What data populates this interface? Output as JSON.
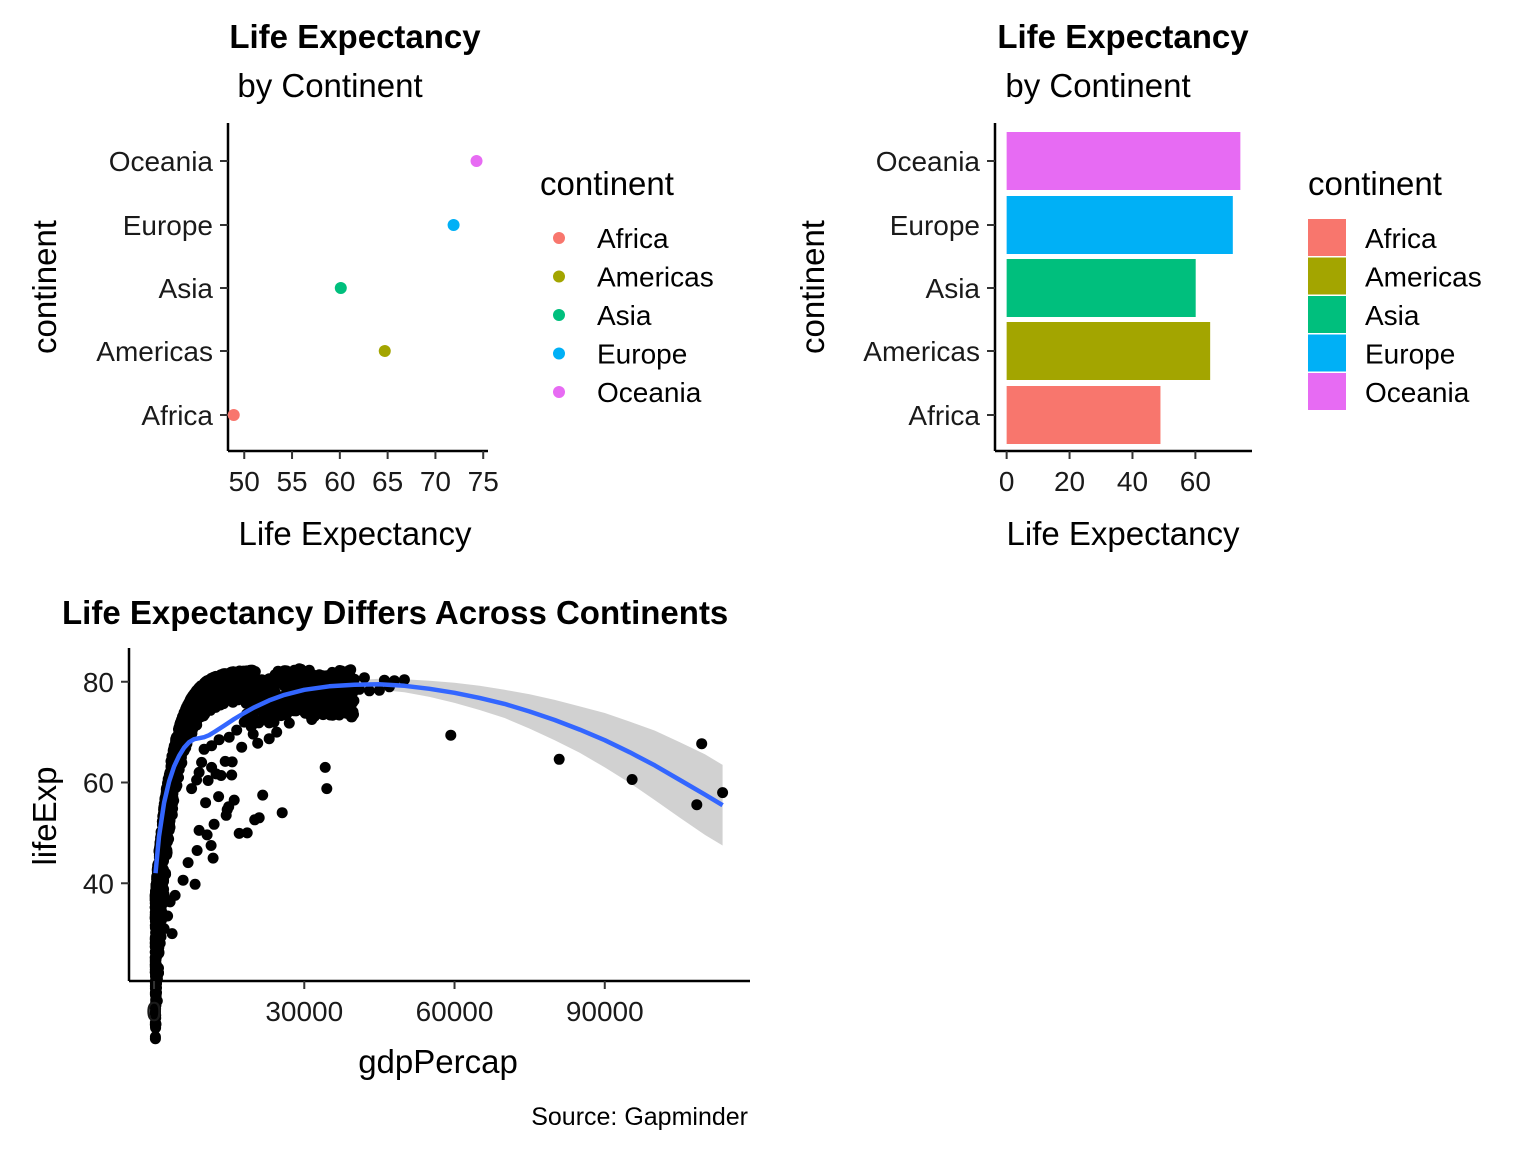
{
  "colors": {
    "Africa": "#F8766D",
    "Americas": "#A3A500",
    "Asia": "#00BF7D",
    "Europe": "#00B0F6",
    "Oceania": "#E76BF3",
    "points": "#000000",
    "smooth_line": "#3366FF",
    "ribbon": "#BEBEBE"
  },
  "chart_data": [
    {
      "type": "scatter",
      "title": "Life Expectancy",
      "subtitle": "by Continent",
      "xlabel": "Life Expectancy",
      "ylabel": "continent",
      "categories": [
        "Africa",
        "Americas",
        "Asia",
        "Europe",
        "Oceania"
      ],
      "values": [
        48.9,
        64.7,
        60.1,
        71.9,
        74.3
      ],
      "xlim": [
        48.3,
        75.5
      ],
      "xticks": [
        "50",
        "55",
        "60",
        "65",
        "70",
        "75"
      ],
      "legend": {
        "title": "continent",
        "items": [
          "Africa",
          "Americas",
          "Asia",
          "Europe",
          "Oceania"
        ],
        "placement": "right"
      },
      "grid": false
    },
    {
      "type": "bar",
      "orientation": "horizontal",
      "title": "Life Expectancy",
      "subtitle": "by Continent",
      "xlabel": "Life Expectancy",
      "ylabel": "continent",
      "categories": [
        "Africa",
        "Americas",
        "Asia",
        "Europe",
        "Oceania"
      ],
      "values": [
        48.9,
        64.7,
        60.1,
        71.9,
        74.3
      ],
      "xlim": [
        -3.7,
        78.0
      ],
      "xticks": [
        "0",
        "20",
        "40",
        "60"
      ],
      "legend": {
        "title": "continent",
        "items": [
          "Africa",
          "Americas",
          "Asia",
          "Europe",
          "Oceania"
        ],
        "placement": "right"
      },
      "grid": false
    },
    {
      "type": "scatter",
      "title": "Life Expectancy Differs Across Continents",
      "xlabel": "gdpPercap",
      "ylabel": "lifeExp",
      "caption": "Source: Gapminder",
      "xlim": [
        -5000,
        119000
      ],
      "ylim": [
        20.6,
        86.7
      ],
      "xticks": [
        "0",
        "30000",
        "60000",
        "90000"
      ],
      "yticks": [
        "40",
        "60",
        "80"
      ],
      "outlier_points": [
        [
          59265,
          69.4
        ],
        [
          80895,
          64.6
        ],
        [
          95458,
          60.6
        ],
        [
          108382,
          55.6
        ],
        [
          109348,
          67.7
        ],
        [
          113523,
          58.0
        ],
        [
          34168,
          63.0
        ],
        [
          34500,
          58.8
        ],
        [
          25600,
          54.0
        ],
        [
          21700,
          57.5
        ],
        [
          21000,
          53.0
        ],
        [
          20100,
          52.6
        ],
        [
          18600,
          50.0
        ],
        [
          17000,
          49.9
        ],
        [
          16000,
          56.5
        ],
        [
          15500,
          61.5
        ],
        [
          14900,
          55.2
        ],
        [
          14600,
          54.6
        ],
        [
          14400,
          53.5
        ],
        [
          13400,
          61.4
        ],
        [
          12900,
          57.2
        ],
        [
          12000,
          51.7
        ],
        [
          11800,
          45.0
        ],
        [
          11400,
          47.5
        ],
        [
          10600,
          49.6
        ],
        [
          10300,
          56.0
        ],
        [
          9000,
          50.5
        ],
        [
          8600,
          46.5
        ],
        [
          8200,
          39.8
        ],
        [
          6800,
          44.1
        ],
        [
          5800,
          40.6
        ],
        [
          4200,
          37.6
        ],
        [
          3600,
          30.0
        ],
        [
          3200,
          36.3
        ],
        [
          2700,
          33.5
        ],
        [
          2200,
          37.0
        ],
        [
          2000,
          31.0
        ],
        [
          1900,
          38.8
        ],
        [
          1500,
          34.3
        ],
        [
          1200,
          30.5
        ],
        [
          700,
          29.0
        ],
        [
          500,
          31.6
        ],
        [
          298,
          23.6
        ],
        [
          240,
          35.2
        ],
        [
          400,
          39.0
        ],
        [
          46000,
          80.3
        ],
        [
          47000,
          79.0
        ],
        [
          48000,
          80.2
        ],
        [
          50000,
          80.4
        ],
        [
          42000,
          80.8
        ],
        [
          40000,
          80.5
        ],
        [
          39000,
          82.0
        ],
        [
          37500,
          82.0
        ],
        [
          36000,
          81.6
        ],
        [
          34500,
          81.2
        ],
        [
          33000,
          81.4
        ],
        [
          31000,
          82.3
        ],
        [
          29000,
          82.6
        ],
        [
          27500,
          81.7
        ],
        [
          26000,
          82.2
        ],
        [
          24500,
          81.1
        ],
        [
          23000,
          80.6
        ],
        [
          21500,
          80.4
        ],
        [
          45000,
          78.3
        ],
        [
          43000,
          78.2
        ],
        [
          41000,
          78.5
        ],
        [
          38000,
          78.6
        ],
        [
          36000,
          77.5
        ],
        [
          34000,
          77.2
        ],
        [
          32000,
          77.4
        ],
        [
          30000,
          76.8
        ],
        [
          30500,
          75.6
        ],
        [
          28000,
          75.2
        ],
        [
          26000,
          74.4
        ],
        [
          24000,
          74.0
        ],
        [
          22000,
          73.2
        ],
        [
          20000,
          72.8
        ],
        [
          18000,
          72.0
        ],
        [
          16500,
          70.4
        ],
        [
          15000,
          69.0
        ],
        [
          13000,
          68.5
        ],
        [
          11500,
          67.3
        ],
        [
          10000,
          66.6
        ],
        [
          9500,
          64.0
        ],
        [
          9000,
          62.0
        ],
        [
          8500,
          60.5
        ],
        [
          7500,
          58.8
        ],
        [
          31500,
          72.5
        ],
        [
          27000,
          71.8
        ],
        [
          24500,
          70.0
        ],
        [
          23000,
          68.7
        ],
        [
          19800,
          69.6
        ],
        [
          20700,
          67.8
        ],
        [
          17500,
          67.0
        ],
        [
          15600,
          64.1
        ],
        [
          14200,
          64.2
        ],
        [
          12400,
          61.7
        ],
        [
          11500,
          63.0
        ],
        [
          10800,
          60.4
        ]
      ],
      "smooth_fit": {
        "x": [
          298,
          1000,
          2000,
          3000,
          4000,
          5000,
          6000,
          7000,
          8000,
          9000,
          10000,
          11000,
          12000,
          14000,
          16000,
          18000,
          20000,
          23000,
          26000,
          30000,
          35000,
          40000,
          45000,
          50000,
          55000,
          60000,
          65000,
          70000,
          75000,
          80000,
          85000,
          90000,
          95000,
          100000,
          105000,
          110000,
          113523
        ],
        "y": [
          42.0,
          49.3,
          56.0,
          60.2,
          63.2,
          65.3,
          66.9,
          68.0,
          68.6,
          68.8,
          69.0,
          69.4,
          70.0,
          71.3,
          72.6,
          73.8,
          74.9,
          76.3,
          77.4,
          78.4,
          79.1,
          79.4,
          79.5,
          79.2,
          78.6,
          77.8,
          76.8,
          75.6,
          74.1,
          72.4,
          70.5,
          68.4,
          66.0,
          63.4,
          60.5,
          57.6,
          55.5
        ],
        "lower": [
          40.8,
          48.7,
          55.5,
          59.8,
          62.8,
          64.9,
          66.5,
          67.6,
          68.2,
          68.4,
          68.6,
          69.0,
          69.6,
          70.9,
          72.2,
          73.4,
          74.5,
          75.8,
          76.8,
          77.7,
          78.3,
          78.5,
          78.4,
          77.9,
          77.0,
          75.8,
          74.4,
          72.8,
          70.7,
          68.4,
          65.9,
          63.0,
          59.9,
          56.5,
          53.0,
          49.6,
          47.5
        ],
        "upper": [
          43.2,
          49.9,
          56.5,
          60.6,
          63.6,
          65.7,
          67.3,
          68.4,
          69.0,
          69.2,
          69.4,
          69.8,
          70.4,
          71.7,
          73.0,
          74.2,
          75.3,
          76.8,
          78.0,
          79.1,
          79.9,
          80.3,
          80.6,
          80.5,
          80.2,
          79.8,
          79.2,
          78.4,
          77.5,
          76.4,
          75.1,
          73.8,
          72.1,
          70.3,
          68.0,
          65.6,
          63.5
        ]
      },
      "dense_cloud_note": "additional dense low-GDP points (about 1600 observations) drawn as a cloud following the upper envelope",
      "grid": false
    }
  ]
}
